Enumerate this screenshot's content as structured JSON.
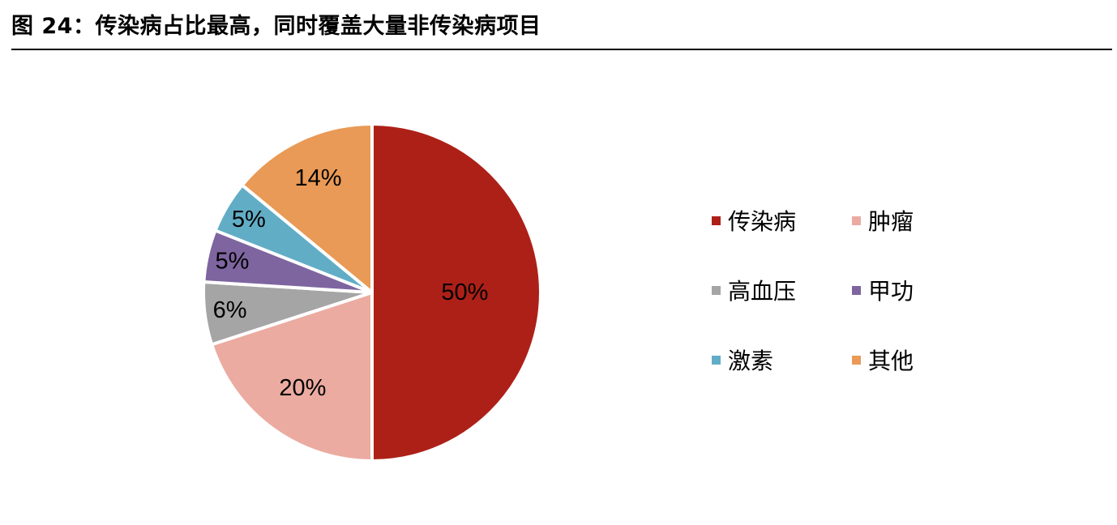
{
  "figure": {
    "title": "图 24：传染病占比最高，同时覆盖大量非传染病项目"
  },
  "chart_data": {
    "type": "pie",
    "title": "",
    "slices": [
      {
        "name": "传染病",
        "value": 50,
        "label": "50%",
        "color": "#AD2018"
      },
      {
        "name": "肿瘤",
        "value": 20,
        "label": "20%",
        "color": "#EBABA1"
      },
      {
        "name": "高血压",
        "value": 6,
        "label": "6%",
        "color": "#A5A5A5"
      },
      {
        "name": "甲功",
        "value": 5,
        "label": "5%",
        "color": "#7E65A0"
      },
      {
        "name": "激素",
        "value": 5,
        "label": "5%",
        "color": "#62ADC6"
      },
      {
        "name": "其他",
        "value": 14,
        "label": "14%",
        "color": "#E99A56"
      }
    ],
    "start_angle": "12 o'clock",
    "direction": "clockwise",
    "legend": {
      "position": "right",
      "columns": 2,
      "entries": [
        "传染病",
        "肿瘤",
        "高血压",
        "甲功",
        "激素",
        "其他"
      ]
    }
  }
}
